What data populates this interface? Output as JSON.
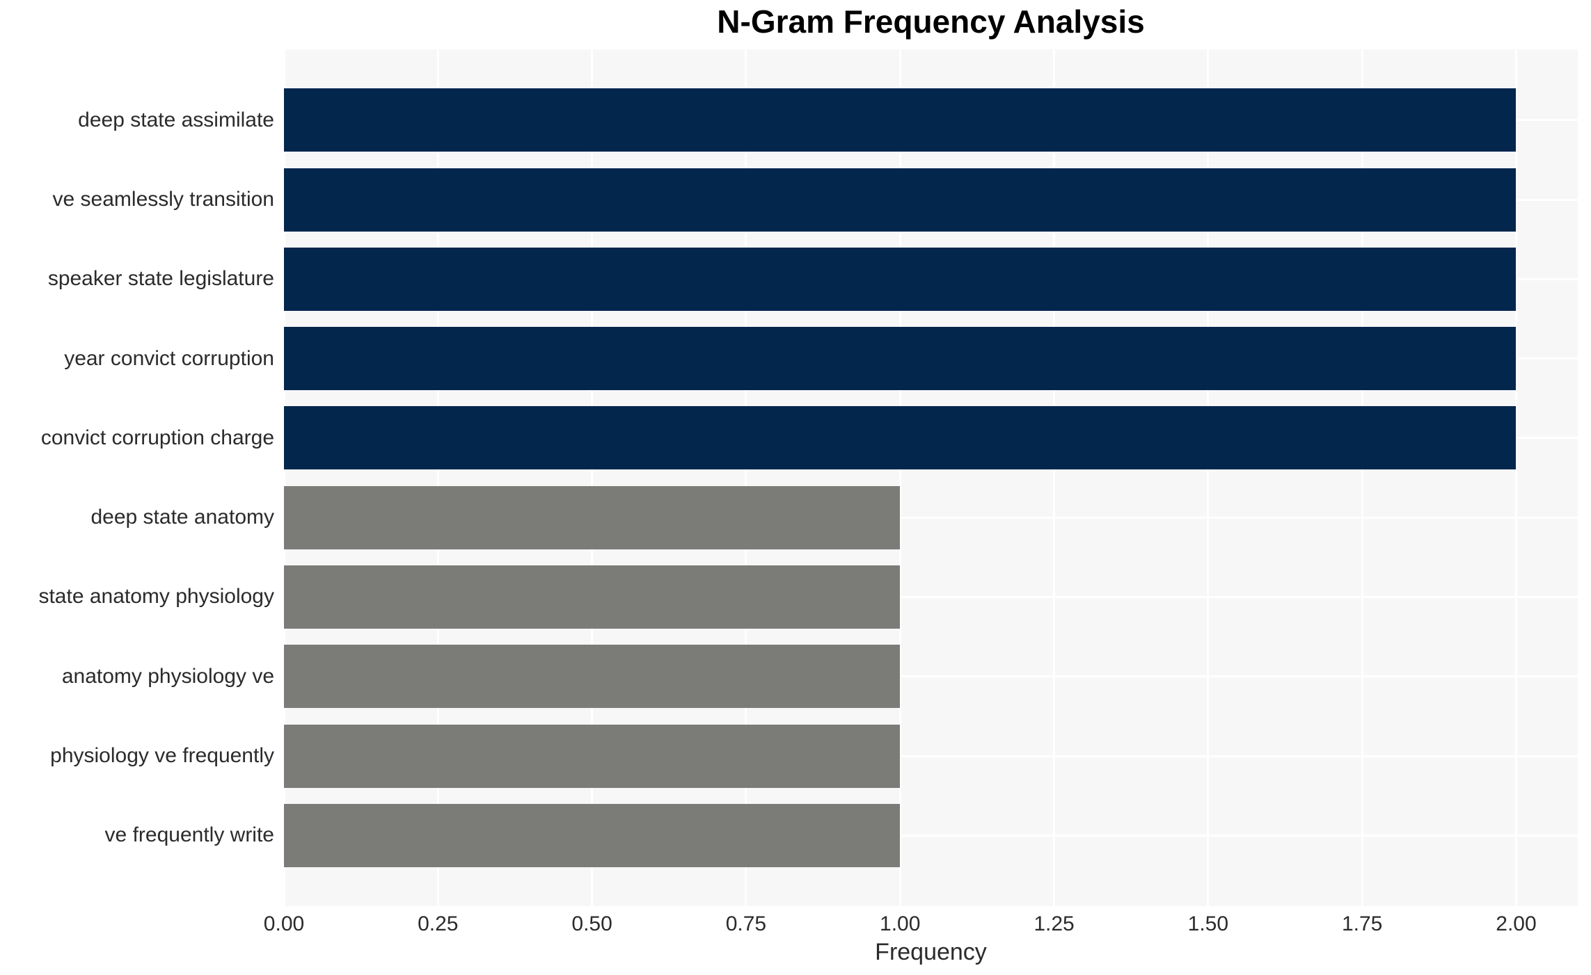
{
  "chart_data": {
    "type": "bar",
    "orientation": "horizontal",
    "title": "N-Gram Frequency Analysis",
    "xlabel": "Frequency",
    "ylabel": "",
    "categories": [
      "deep state assimilate",
      "ve seamlessly transition",
      "speaker state legislature",
      "year convict corruption",
      "convict corruption charge",
      "deep state anatomy",
      "state anatomy physiology",
      "anatomy physiology ve",
      "physiology ve frequently",
      "ve frequently write"
    ],
    "values": [
      2,
      2,
      2,
      2,
      2,
      1,
      1,
      1,
      1,
      1
    ],
    "bar_colors": [
      "#03264d",
      "#03264d",
      "#03264d",
      "#03264d",
      "#03264d",
      "#7b7b78",
      "#7b7b78",
      "#7b7b78",
      "#7b7b78",
      "#7b7b78"
    ],
    "xlim": [
      0,
      2.1
    ],
    "xtick_values": [
      0,
      0.25,
      0.5,
      0.75,
      1.0,
      1.25,
      1.5,
      1.75,
      2.0
    ],
    "xtick_labels": [
      "0.00",
      "0.25",
      "0.50",
      "0.75",
      "1.00",
      "1.25",
      "1.50",
      "1.75",
      "2.00"
    ],
    "grid": true,
    "legend": false,
    "colors": {
      "plot_bg": "#f7f7f8",
      "grid": "#ffffff",
      "text": "#2b2b2b",
      "title_text": "#000000"
    }
  }
}
